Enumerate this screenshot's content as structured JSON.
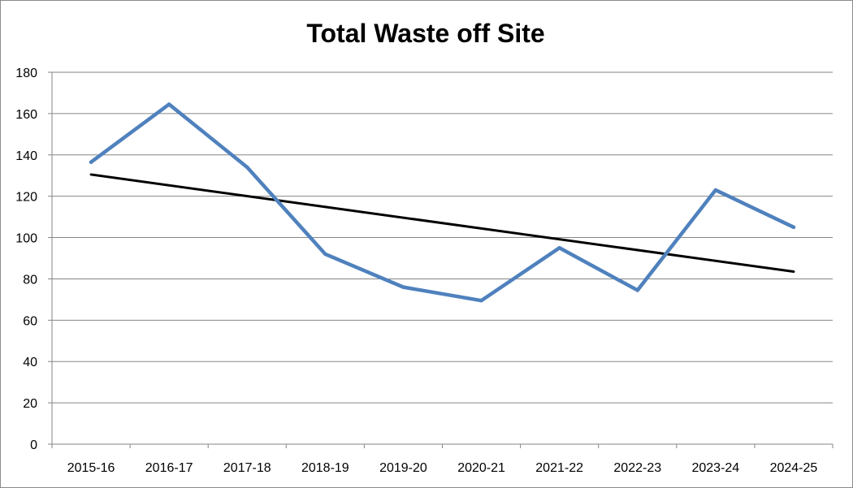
{
  "chart_data": {
    "type": "line",
    "title": "Total Waste off Site",
    "xlabel": "",
    "ylabel": "",
    "categories": [
      "2015-16",
      "2016-17",
      "2017-18",
      "2018-19",
      "2019-20",
      "2020-21",
      "2021-22",
      "2022-23",
      "2023-24",
      "2024-25"
    ],
    "series": [
      {
        "values": [
          136.5,
          164.5,
          134,
          92,
          76,
          69.5,
          95,
          74.5,
          123,
          105
        ],
        "color": "#4f81bd"
      }
    ],
    "trendline": {
      "type": "linear",
      "start": 130.5,
      "end": 83.5,
      "color": "#000000"
    },
    "ylim": [
      0,
      180
    ],
    "yticks": [
      0,
      20,
      40,
      60,
      80,
      100,
      120,
      140,
      160,
      180
    ],
    "grid": true,
    "legend": "none"
  }
}
